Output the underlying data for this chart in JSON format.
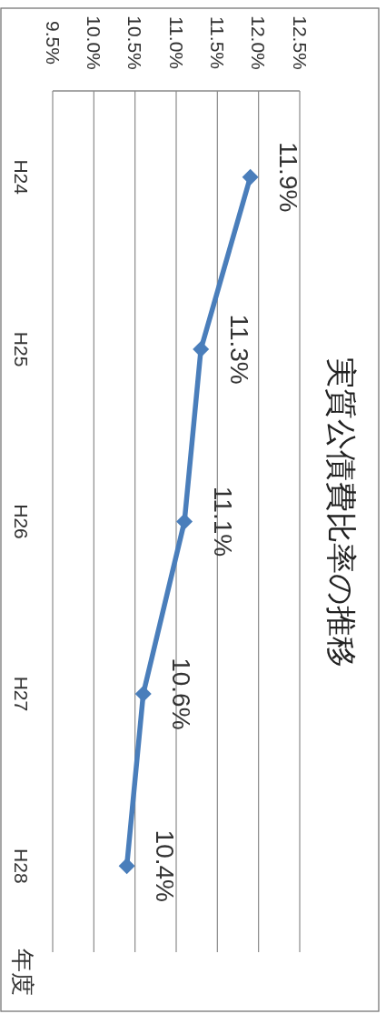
{
  "chart_data": {
    "type": "line",
    "orientation": "horizontal",
    "title": "実質公債費比率の推移",
    "ylabel": "年度",
    "categories": [
      "H24",
      "H25",
      "H26",
      "H27",
      "H28"
    ],
    "series": [
      {
        "color": "#4a7ebb",
        "values": [
          11.9,
          11.3,
          11.1,
          10.6,
          10.4
        ],
        "value_labels": [
          "11.9%",
          "11.3%",
          "11.1%",
          "10.6%",
          "10.4%"
        ]
      }
    ],
    "xlim": [
      9.5,
      12.5
    ],
    "xticks": [
      {
        "value": 9.5,
        "label": "9.5%"
      },
      {
        "value": 10.0,
        "label": "10.0%"
      },
      {
        "value": 10.5,
        "label": "10.5%"
      },
      {
        "value": 11.0,
        "label": "11.0%"
      },
      {
        "value": 11.5,
        "label": "11.5%"
      },
      {
        "value": 12.0,
        "label": "12.0%"
      },
      {
        "value": 12.5,
        "label": "12.5%"
      }
    ],
    "grid": "x",
    "marker": "diamond",
    "line_style": "solid"
  }
}
